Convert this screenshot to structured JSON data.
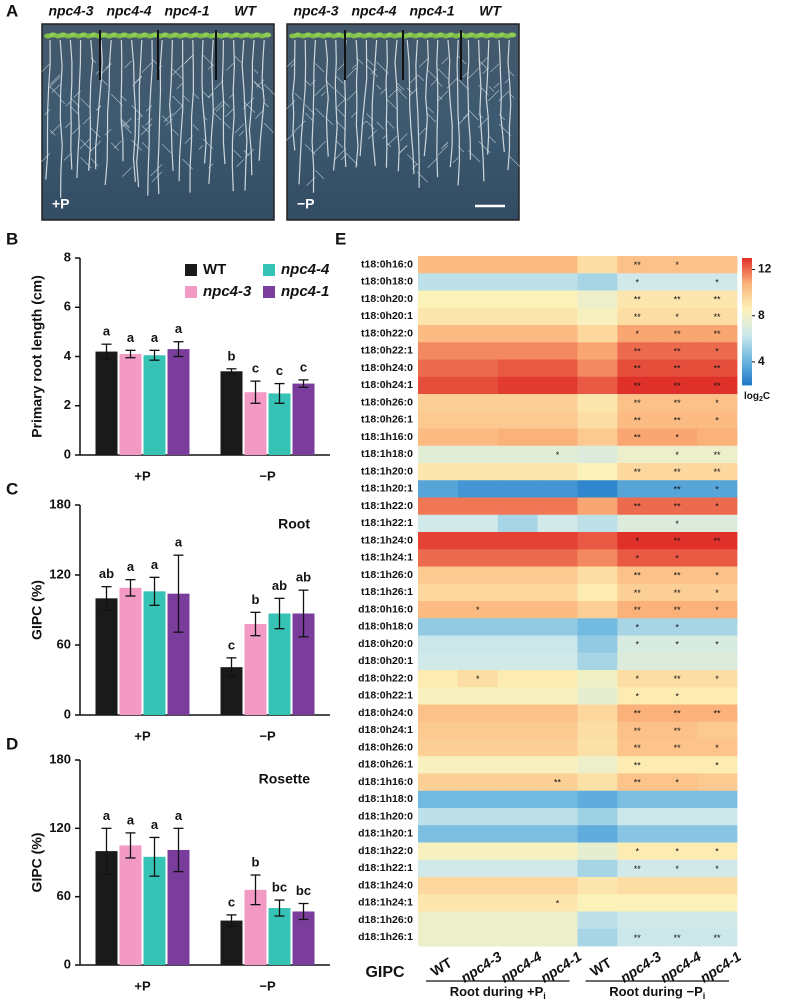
{
  "panel_a": {
    "panel": "A",
    "genotypes": [
      "npc4-3",
      "npc4-4",
      "npc4-1",
      "WT"
    ],
    "tags": [
      "+P",
      "−P"
    ]
  },
  "chart_data": [
    {
      "type": "bar",
      "panel": "B",
      "ylabel": "Primary root length (cm)",
      "categories": [
        "+P",
        "−P"
      ],
      "ylim": [
        0,
        8
      ],
      "yticks": [
        0,
        2,
        4,
        6,
        8
      ],
      "legend": "top-right",
      "series": [
        {
          "name": "WT",
          "color": "#1a1a1a",
          "style": "normal",
          "values": [
            4.2,
            3.4
          ],
          "errors": [
            0.3,
            0.1
          ],
          "letters": [
            "a",
            "b"
          ]
        },
        {
          "name": "npc4-3",
          "color": "#f29ac4",
          "style": "italic",
          "values": [
            4.1,
            2.55
          ],
          "errors": [
            0.15,
            0.45
          ],
          "letters": [
            "a",
            "c"
          ]
        },
        {
          "name": "npc4-4",
          "color": "#36c2b4",
          "style": "italic",
          "values": [
            4.05,
            2.5
          ],
          "errors": [
            0.2,
            0.4
          ],
          "letters": [
            "a",
            "c"
          ]
        },
        {
          "name": "npc4-1",
          "color": "#7a3d9c",
          "style": "italic",
          "values": [
            4.3,
            2.9
          ],
          "errors": [
            0.3,
            0.15
          ],
          "letters": [
            "a",
            "c"
          ]
        }
      ]
    },
    {
      "type": "bar",
      "panel": "C",
      "ylabel": "GIPC (%)",
      "annotation": "Root",
      "categories": [
        "+P",
        "−P"
      ],
      "ylim": [
        0,
        180
      ],
      "yticks": [
        0,
        60,
        120,
        180
      ],
      "series": [
        {
          "color": "#1a1a1a",
          "values": [
            100,
            41
          ],
          "errors": [
            10,
            8
          ],
          "letters": [
            "ab",
            "c"
          ]
        },
        {
          "color": "#f29ac4",
          "values": [
            109,
            78
          ],
          "errors": [
            7,
            10
          ],
          "letters": [
            "a",
            "b"
          ]
        },
        {
          "color": "#36c2b4",
          "values": [
            106,
            87
          ],
          "errors": [
            12,
            13
          ],
          "letters": [
            "a",
            "ab"
          ]
        },
        {
          "color": "#7a3d9c",
          "values": [
            104,
            87
          ],
          "errors": [
            33,
            20
          ],
          "letters": [
            "a",
            "ab"
          ]
        }
      ]
    },
    {
      "type": "bar",
      "panel": "D",
      "ylabel": "GIPC (%)",
      "annotation": "Rosette",
      "categories": [
        "+P",
        "−P"
      ],
      "ylim": [
        0,
        180
      ],
      "yticks": [
        0,
        60,
        120,
        180
      ],
      "series": [
        {
          "color": "#1a1a1a",
          "values": [
            100,
            39
          ],
          "errors": [
            20,
            5
          ],
          "letters": [
            "a",
            "c"
          ]
        },
        {
          "color": "#f29ac4",
          "values": [
            105,
            66
          ],
          "errors": [
            11,
            13
          ],
          "letters": [
            "a",
            "b"
          ]
        },
        {
          "color": "#36c2b4",
          "values": [
            95,
            50
          ],
          "errors": [
            17,
            7
          ],
          "letters": [
            "a",
            "bc"
          ]
        },
        {
          "color": "#7a3d9c",
          "values": [
            101,
            47
          ],
          "errors": [
            19,
            7
          ],
          "letters": [
            "a",
            "bc"
          ]
        }
      ]
    },
    {
      "type": "heatmap",
      "panel": "E",
      "row_title": "GIPC",
      "colorbar_label": {
        "text": "log",
        "subscript": "2",
        "suffix": "C"
      },
      "clim": [
        2,
        13
      ],
      "cticks": [
        4,
        8,
        12
      ],
      "colors": [
        "#1f78c8",
        "#6fb8e0",
        "#cfe9ea",
        "#fdf2b8",
        "#fbb27a",
        "#e0302a"
      ],
      "columns": [
        "WT",
        "npc4-3",
        "npc4-4",
        "npc4-1",
        "WT",
        "npc4-3",
        "npc4-4",
        "npc4-1"
      ],
      "column_styles": [
        "normal",
        "italic",
        "italic",
        "italic",
        "normal",
        "italic",
        "italic",
        "italic"
      ],
      "groups": [
        {
          "label": "Root during +P",
          "subscript": "i"
        },
        {
          "label": "Root during −P",
          "subscript": "i"
        }
      ],
      "rows": [
        "t18:0h16:0",
        "t18:0h18:0",
        "t18:0h20:0",
        "t18:0h20:1",
        "t18:0h22:0",
        "t18:0h22:1",
        "t18:0h24:0",
        "t18:0h24:1",
        "t18:0h26:0",
        "t18:0h26:1",
        "t18:1h16:0",
        "t18:1h18:0",
        "t18:1h20:0",
        "t18:1h20:1",
        "t18:1h22:0",
        "t18:1h22:1",
        "t18:1h24:0",
        "t18:1h24:1",
        "t18:1h26:0",
        "t18:1h26:1",
        "d18:0h16:0",
        "d18:0h18:0",
        "d18:0h20:0",
        "d18:0h20:1",
        "d18:0h22:0",
        "d18:0h22:1",
        "d18:0h24:0",
        "d18:0h24:1",
        "d18:0h26:0",
        "d18:0h26:1",
        "d18:1h16:0",
        "d18:1h18:0",
        "d18:1h20:0",
        "d18:1h20:1",
        "d18:1h22:0",
        "d18:1h22:1",
        "d18:1h24:0",
        "d18:1h24:1",
        "d18:1h26:0",
        "d18:1h26:1"
      ],
      "values": [
        [
          10.5,
          10.5,
          10.5,
          10.5,
          9.3,
          10.3,
          10.3,
          10.3
        ],
        [
          6,
          6,
          6,
          6,
          5.5,
          6.5,
          6.5,
          6.5
        ],
        [
          8.5,
          8.5,
          8.5,
          8.5,
          7.8,
          9,
          9,
          9
        ],
        [
          9,
          9,
          9,
          9,
          8.3,
          9.3,
          9.3,
          9.3
        ],
        [
          10.5,
          10.5,
          10.5,
          10.5,
          9.5,
          11,
          11,
          11
        ],
        [
          11.5,
          11.5,
          11.5,
          11.5,
          11,
          12,
          12,
          12
        ],
        [
          12,
          12,
          12.3,
          12.3,
          11.5,
          12.5,
          12.5,
          12.5
        ],
        [
          12.5,
          12.5,
          12.8,
          12.8,
          12.3,
          13,
          13,
          13
        ],
        [
          9.8,
          9.8,
          9.8,
          9.8,
          9,
          10.3,
          10.3,
          10.3
        ],
        [
          10,
          10,
          10,
          10,
          9.3,
          10.5,
          10.5,
          10.5
        ],
        [
          10.5,
          10.5,
          10.8,
          10.8,
          10,
          11,
          11,
          10.8
        ],
        [
          7.3,
          7.3,
          7.3,
          7.3,
          7,
          7.8,
          7.8,
          7.8
        ],
        [
          9,
          9,
          9,
          9,
          8.5,
          9.5,
          9.5,
          9.5
        ],
        [
          3.5,
          3,
          3,
          3,
          2.5,
          3.5,
          3.5,
          3.5
        ],
        [
          11.8,
          11.8,
          11.8,
          11.8,
          11,
          12,
          12,
          12
        ],
        [
          6.5,
          6.5,
          5.5,
          6.5,
          6,
          7,
          7,
          7
        ],
        [
          12.7,
          12.7,
          12.7,
          12.7,
          12.3,
          13,
          13,
          13
        ],
        [
          12,
          12,
          12,
          12,
          11.5,
          12.3,
          12.3,
          12.3
        ],
        [
          10,
          10,
          10,
          10,
          9.3,
          10.3,
          10.3,
          10.3
        ],
        [
          9.5,
          9.5,
          9.5,
          9.5,
          8.8,
          9.8,
          9.8,
          9.8
        ],
        [
          10.5,
          10.5,
          10.5,
          10.5,
          9.8,
          10.8,
          10.8,
          10.8
        ],
        [
          5,
          5,
          5,
          5,
          4.3,
          5.5,
          5.5,
          5.5
        ],
        [
          6.3,
          6.3,
          6.3,
          6.3,
          5,
          6.8,
          6.8,
          6.8
        ],
        [
          6.5,
          6.5,
          6.5,
          6.5,
          5.5,
          7,
          7,
          7
        ],
        [
          8.8,
          9.3,
          8.8,
          8.8,
          8,
          9.3,
          9.3,
          9.3
        ],
        [
          8.3,
          8.3,
          8.3,
          8.3,
          7.5,
          8.8,
          8.8,
          8.8
        ],
        [
          10.3,
          10.3,
          10.3,
          10.3,
          9.5,
          10.8,
          10.8,
          10.8
        ],
        [
          10,
          10,
          10,
          10,
          9.3,
          10.3,
          10.3,
          10
        ],
        [
          9.8,
          9.8,
          9.8,
          9.8,
          9.2,
          10.2,
          10.2,
          10.2
        ],
        [
          8.3,
          8.3,
          8.3,
          8.3,
          7.8,
          8.8,
          8.8,
          8.8
        ],
        [
          9.8,
          9.8,
          9.8,
          9.8,
          9.2,
          10.2,
          10.2,
          10
        ],
        [
          4.3,
          4.3,
          4.3,
          4.3,
          3.8,
          4.5,
          4.5,
          4.5
        ],
        [
          6,
          6,
          6,
          6,
          5.3,
          6.3,
          6.3,
          6.3
        ],
        [
          4.5,
          4.5,
          4.5,
          4.5,
          3.8,
          4.8,
          4.8,
          4.8
        ],
        [
          8.3,
          8.3,
          8.3,
          8.3,
          7.5,
          8.8,
          8.8,
          8.8
        ],
        [
          6.5,
          6.5,
          6.5,
          6.5,
          5.5,
          6.5,
          6.5,
          6.5
        ],
        [
          9.5,
          9.5,
          9.5,
          9.5,
          9,
          9.3,
          9.3,
          9.3
        ],
        [
          9,
          9,
          9,
          9,
          8.5,
          8.5,
          8.5,
          8.5
        ],
        [
          7.8,
          7.8,
          7.8,
          7.8,
          6,
          6.5,
          6.5,
          6.5
        ],
        [
          7.8,
          7.8,
          7.8,
          7.8,
          5.5,
          6.3,
          6.3,
          6.3
        ]
      ],
      "annotations": [
        [
          null,
          null,
          null,
          null,
          null,
          "**",
          "*",
          null
        ],
        [
          null,
          null,
          null,
          null,
          null,
          "*",
          null,
          "*"
        ],
        [
          null,
          null,
          null,
          null,
          null,
          "**",
          "**",
          "**"
        ],
        [
          null,
          null,
          null,
          null,
          null,
          "**",
          "*",
          "**"
        ],
        [
          null,
          null,
          null,
          null,
          null,
          "*",
          "**",
          "**"
        ],
        [
          null,
          null,
          null,
          null,
          null,
          "**",
          "**",
          "*"
        ],
        [
          null,
          null,
          null,
          null,
          null,
          "**",
          "**",
          "**"
        ],
        [
          null,
          null,
          null,
          null,
          null,
          "**",
          "**",
          "**"
        ],
        [
          null,
          null,
          null,
          null,
          null,
          "**",
          "**",
          "*"
        ],
        [
          null,
          null,
          null,
          null,
          null,
          "**",
          "**",
          "*"
        ],
        [
          null,
          null,
          null,
          null,
          null,
          "**",
          "*",
          null
        ],
        [
          null,
          null,
          null,
          "*",
          null,
          null,
          "*",
          "**"
        ],
        [
          null,
          null,
          null,
          null,
          null,
          "**",
          "**",
          "**"
        ],
        [
          null,
          null,
          null,
          null,
          null,
          null,
          "**",
          "*"
        ],
        [
          null,
          null,
          null,
          null,
          null,
          "**",
          "**",
          "*"
        ],
        [
          null,
          null,
          null,
          null,
          null,
          null,
          "*",
          null
        ],
        [
          null,
          null,
          null,
          null,
          null,
          "*",
          "**",
          "**"
        ],
        [
          null,
          null,
          null,
          null,
          null,
          "*",
          "*",
          null
        ],
        [
          null,
          null,
          null,
          null,
          null,
          "**",
          "**",
          "*"
        ],
        [
          null,
          null,
          null,
          null,
          null,
          "**",
          "**",
          "*"
        ],
        [
          null,
          "*",
          null,
          null,
          null,
          "**",
          "**",
          "*"
        ],
        [
          null,
          null,
          null,
          null,
          null,
          "*",
          "*",
          null
        ],
        [
          null,
          null,
          null,
          null,
          null,
          "*",
          "*",
          "*"
        ],
        [
          null,
          null,
          null,
          null,
          null,
          null,
          null,
          null
        ],
        [
          null,
          "*",
          null,
          null,
          null,
          "*",
          "**",
          "*"
        ],
        [
          null,
          null,
          null,
          null,
          null,
          "*",
          "*",
          null
        ],
        [
          null,
          null,
          null,
          null,
          null,
          "**",
          "**",
          "**"
        ],
        [
          null,
          null,
          null,
          null,
          null,
          "**",
          "**",
          null
        ],
        [
          null,
          null,
          null,
          null,
          null,
          "**",
          "**",
          "*"
        ],
        [
          null,
          null,
          null,
          null,
          null,
          "**",
          null,
          "*"
        ],
        [
          null,
          null,
          null,
          "**",
          null,
          "**",
          "*",
          null
        ],
        [
          null,
          null,
          null,
          null,
          null,
          null,
          null,
          null
        ],
        [
          null,
          null,
          null,
          null,
          null,
          null,
          null,
          null
        ],
        [
          null,
          null,
          null,
          null,
          null,
          null,
          null,
          null
        ],
        [
          null,
          null,
          null,
          null,
          null,
          "*",
          "*",
          "*"
        ],
        [
          null,
          null,
          null,
          null,
          null,
          "**",
          "*",
          "*"
        ],
        [
          null,
          null,
          null,
          null,
          null,
          null,
          null,
          null
        ],
        [
          null,
          null,
          null,
          "*",
          null,
          null,
          null,
          null
        ],
        [
          null,
          null,
          null,
          null,
          null,
          null,
          null,
          null
        ],
        [
          null,
          null,
          null,
          null,
          null,
          "**",
          "**",
          "**"
        ]
      ]
    }
  ]
}
